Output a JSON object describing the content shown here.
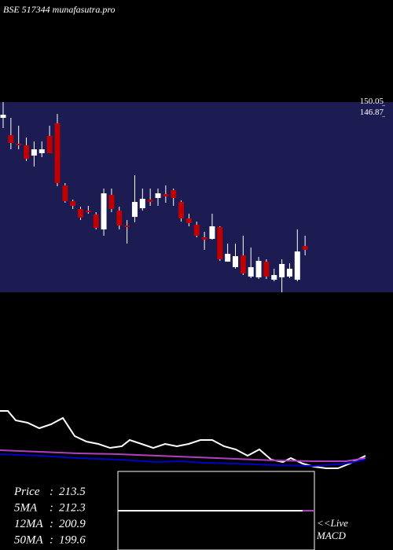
{
  "header": "BSE 517344 munafasutra.pro",
  "chart_data": [
    {
      "type": "candlestick",
      "background": "#1c1b52",
      "up_color": "#ffffff",
      "down_color": "#c00000",
      "wick_color": "#ffffff",
      "ylim": [
        96,
        151
      ],
      "yticks": [
        150.05,
        146.87
      ],
      "open": [
        146.45,
        141.45,
        138.95,
        138.5,
        135.54,
        136.23,
        141.23,
        144.86,
        126.91,
        122.36,
        120.09,
        119.63,
        118.5,
        114.18,
        124.18,
        119.63,
        115.31,
        117.81,
        120.31,
        122.81,
        123.27,
        124.41,
        125.54,
        122.13,
        117.36,
        115.54,
        111.9,
        111.45,
        114.86,
        104.86,
        103.27,
        106.68,
        100.54,
        100.31,
        104.86,
        99.63,
        100.31,
        100.54,
        99.63,
        109.4
      ],
      "high": [
        151,
        146.45,
        144.18,
        140.77,
        139.64,
        139.64,
        144.18,
        147.59,
        127.59,
        122.81,
        120.77,
        121.0,
        119.18,
        126.0,
        126.0,
        120.77,
        116.91,
        129.86,
        126.0,
        126.0,
        126.0,
        126.91,
        126.0,
        122.59,
        118.72,
        116.45,
        113.5,
        118.72,
        115.09,
        110.09,
        110.09,
        112.36,
        108.95,
        106.22,
        105.54,
        102.81,
        105.54,
        104.4,
        114.18,
        112.36
      ],
      "low": [
        143.5,
        137.36,
        137.36,
        133.95,
        132.36,
        135.09,
        136.23,
        126.68,
        121.91,
        120.09,
        116.91,
        118.72,
        114.18,
        112.36,
        119.18,
        114.18,
        110.09,
        116.22,
        119.63,
        121.0,
        121.0,
        121.91,
        121.0,
        116.45,
        115.09,
        111.9,
        108.27,
        111.22,
        105.09,
        104.86,
        102.81,
        101.0,
        100.09,
        99.86,
        99.86,
        99.18,
        96.0,
        100.09,
        99.18,
        106.68
      ],
      "close": [
        147.36,
        139.18,
        138.5,
        134.63,
        137.36,
        137.36,
        136.23,
        127.59,
        122.36,
        121.0,
        117.59,
        119.18,
        114.63,
        124.63,
        120.09,
        115.31,
        114.86,
        122.13,
        123.04,
        122.13,
        124.63,
        123.72,
        123.27,
        117.36,
        116.0,
        112.36,
        111.22,
        115.09,
        105.54,
        107.13,
        106.45,
        101.45,
        103.27,
        105.09,
        100.54,
        101.0,
        104.18,
        102.81,
        107.81,
        108.27
      ]
    },
    {
      "type": "line",
      "xlim": [
        0,
        465
      ],
      "ylim": [
        0,
        100
      ],
      "series": [
        {
          "color": "#ffffff",
          "x": [
            0,
            10,
            20,
            35,
            50,
            65,
            80,
            95,
            110,
            125,
            140,
            155,
            165,
            180,
            195,
            210,
            225,
            240,
            255,
            270,
            285,
            300,
            315,
            330,
            345,
            360,
            370,
            385,
            400,
            415,
            430,
            445,
            465
          ],
          "values": [
            85.6,
            85.6,
            72.2,
            68.9,
            61.1,
            66.7,
            75.6,
            50,
            42.2,
            38.9,
            33.3,
            35.6,
            44.4,
            38.9,
            33.3,
            38.9,
            35.6,
            38.9,
            44.4,
            44.4,
            35.6,
            31.1,
            22.2,
            31.1,
            16.7,
            13.3,
            18.9,
            11.1,
            6.7,
            4.4,
            4.4,
            11.1,
            22.2
          ]
        },
        {
          "color": "#0000cc",
          "x": [
            0,
            50,
            100,
            150,
            200,
            230,
            260,
            300,
            350,
            400,
            440,
            465
          ],
          "values": [
            24.4,
            22.2,
            18.9,
            16.7,
            13.3,
            14.4,
            12.2,
            11.1,
            8.9,
            7.8,
            11.1,
            16.7
          ]
        },
        {
          "color": "#b040c0",
          "x": [
            0,
            50,
            100,
            150,
            200,
            250,
            300,
            350,
            400,
            440,
            465
          ],
          "values": [
            30,
            27.8,
            25.6,
            24.4,
            22.2,
            20,
            17.8,
            15.6,
            14.4,
            14.4,
            18.9
          ]
        }
      ]
    }
  ],
  "stats": [
    {
      "label": "Price",
      "value": 213.5
    },
    {
      "label": "5MA",
      "value": 212.3
    },
    {
      "label": "12MA",
      "value": 200.9
    },
    {
      "label": "50MA",
      "value": 199.6
    }
  ],
  "live_label": "<<Live",
  "macd_label": "MACD"
}
